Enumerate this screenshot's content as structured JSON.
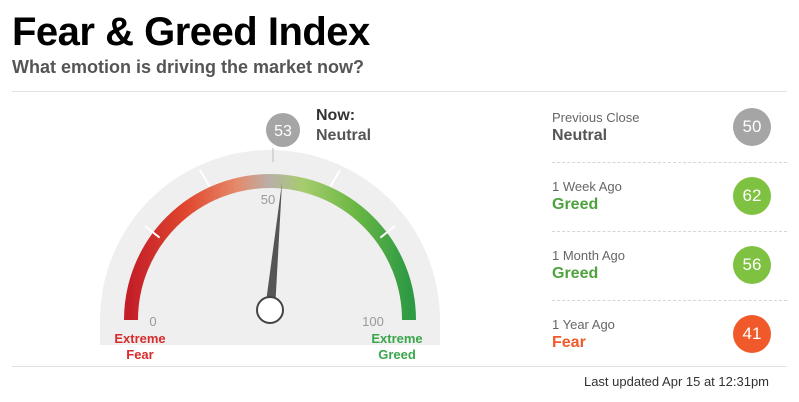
{
  "header": {
    "title": "Fear & Greed Index",
    "subtitle": "What emotion is driving the market now?"
  },
  "gauge": {
    "value": 53,
    "value_text": "53",
    "now_label": "Now:",
    "now_rating": "Neutral",
    "tick_min": "0",
    "tick_mid": "50",
    "tick_max": "100",
    "label_left_1": "Extreme",
    "label_left_2": "Fear",
    "label_right_1": "Extreme",
    "label_right_2": "Greed",
    "colors": {
      "extreme_fear": "#d62d2d",
      "fear": "#f06232",
      "neutral": "#b5b5b5",
      "greed": "#84c441",
      "extreme_greed": "#3aa64c"
    }
  },
  "history": [
    {
      "label": "Previous Close",
      "rating": "Neutral",
      "value": "50",
      "rating_color": "#555555",
      "badge_color": "#a5a5a5"
    },
    {
      "label": "1 Week Ago",
      "rating": "Greed",
      "value": "62",
      "rating_color": "#4ea33e",
      "badge_color": "#7fc241"
    },
    {
      "label": "1 Month Ago",
      "rating": "Greed",
      "value": "56",
      "rating_color": "#4ea33e",
      "badge_color": "#7fc241"
    },
    {
      "label": "1 Year Ago",
      "rating": "Fear",
      "value": "41",
      "rating_color": "#f05a2a",
      "badge_color": "#f05a2a"
    }
  ],
  "footer": {
    "updated": "Last updated Apr 15 at 12:31pm"
  }
}
